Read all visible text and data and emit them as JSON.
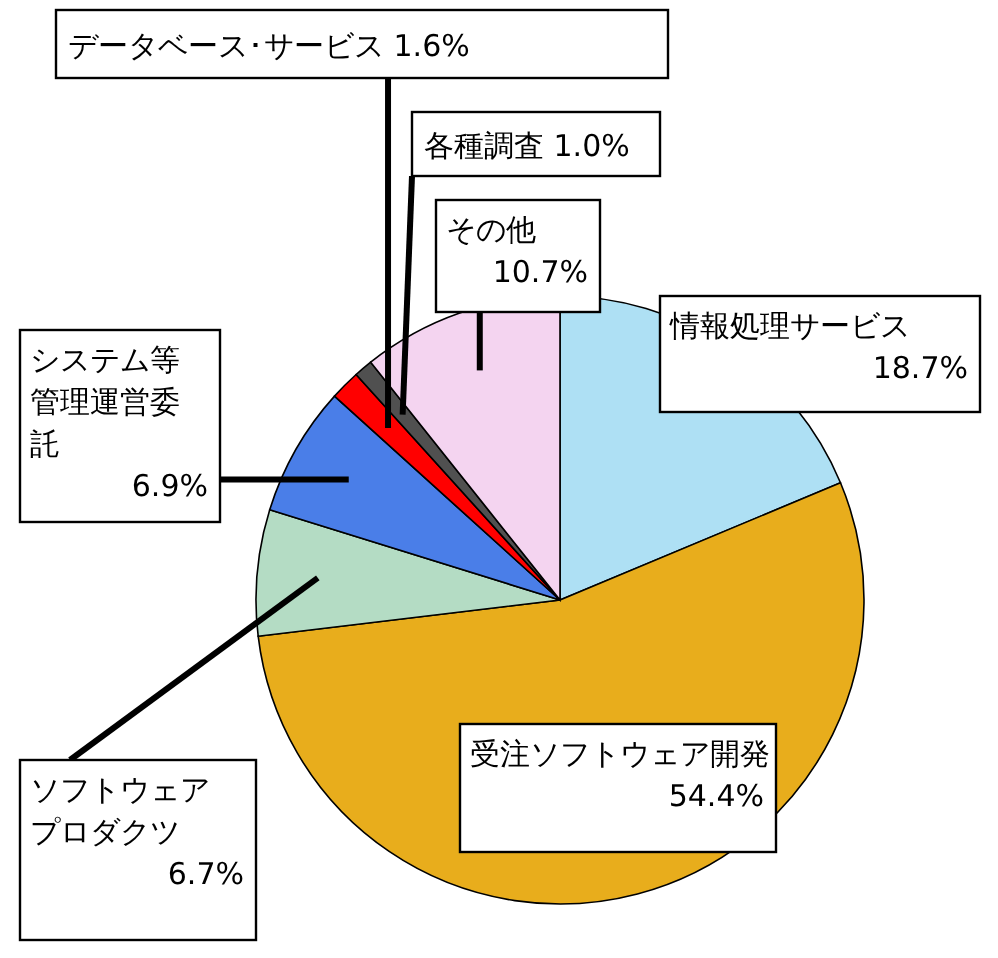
{
  "chart_data": {
    "type": "pie",
    "categories": [
      "情報処理サービス",
      "受注ソフトウェア開発",
      "ソフトウェアプロダクツ",
      "システム等管理運営委託",
      "データベース･サービス",
      "各種調査",
      "その他"
    ],
    "values": [
      18.7,
      54.4,
      6.7,
      6.9,
      1.6,
      1.0,
      10.7
    ],
    "colors": [
      "#aee0f4",
      "#e8ad1c",
      "#b4dcc4",
      "#4a7ee8",
      "#ff0000",
      "#505050",
      "#f4d4f0"
    ],
    "value_labels": [
      "18.7%",
      "54.4%",
      "6.7%",
      "6.9%",
      "1.6%",
      "1.0%",
      "10.7%"
    ]
  }
}
